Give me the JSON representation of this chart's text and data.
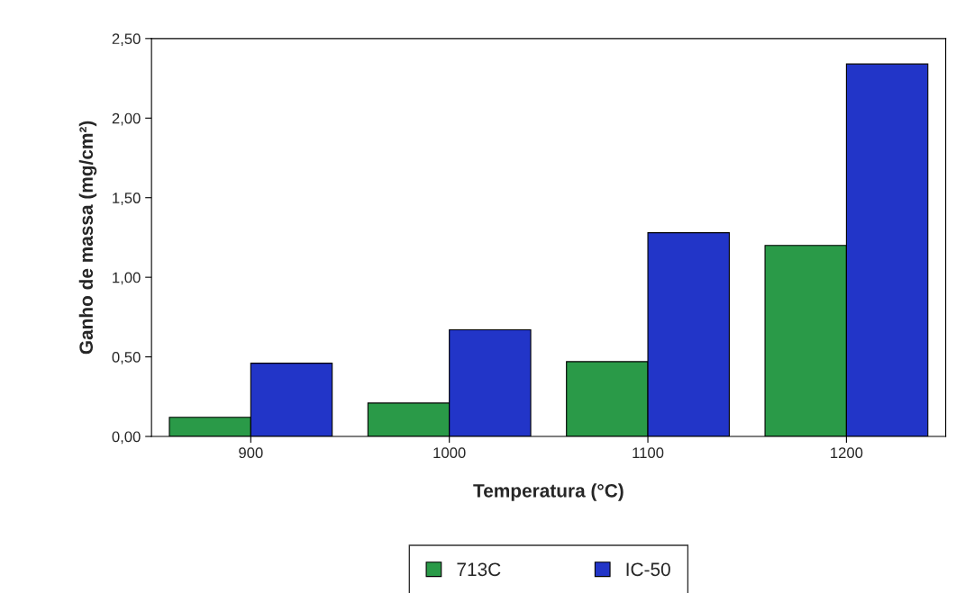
{
  "chart_data": {
    "type": "bar",
    "xlabel": "Temperatura (°C)",
    "ylabel": "Ganho de massa (mg/cm²)",
    "categories": [
      "900",
      "1000",
      "1100",
      "1200"
    ],
    "series": [
      {
        "name": "713C",
        "color": "#2a9a48",
        "values": [
          0.12,
          0.21,
          0.47,
          1.2
        ]
      },
      {
        "name": "IC-50",
        "color": "#2235c8",
        "values": [
          0.46,
          0.67,
          1.28,
          2.34
        ]
      }
    ],
    "ylim": [
      0,
      2.5
    ],
    "yticks": [
      {
        "value": 0,
        "label": "0,00"
      },
      {
        "value": 0.5,
        "label": "0,50"
      },
      {
        "value": 1,
        "label": "1,00"
      },
      {
        "value": 1.5,
        "label": "1,50"
      },
      {
        "value": 2,
        "label": "2,00"
      },
      {
        "value": 2.5,
        "label": "2,50"
      }
    ],
    "grid": false,
    "legend": "bottom"
  }
}
